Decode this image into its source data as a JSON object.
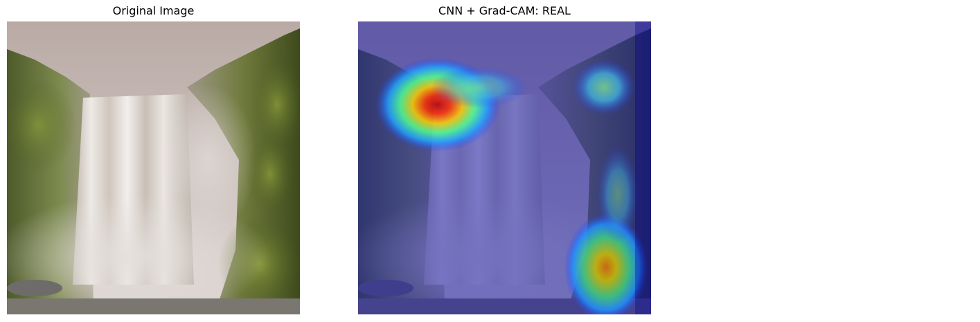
{
  "panels": [
    {
      "title": "Original Image"
    },
    {
      "title": "CNN + Grad-CAM: REAL"
    }
  ],
  "heatmap": {
    "colormap": "jet",
    "hotspots": [
      {
        "label": "upper-left cliff edge",
        "intensity": 1.0
      },
      {
        "label": "lower-right mossy rock",
        "intensity": 0.8
      },
      {
        "label": "upper-right cliff",
        "intensity": 0.5
      }
    ]
  }
}
